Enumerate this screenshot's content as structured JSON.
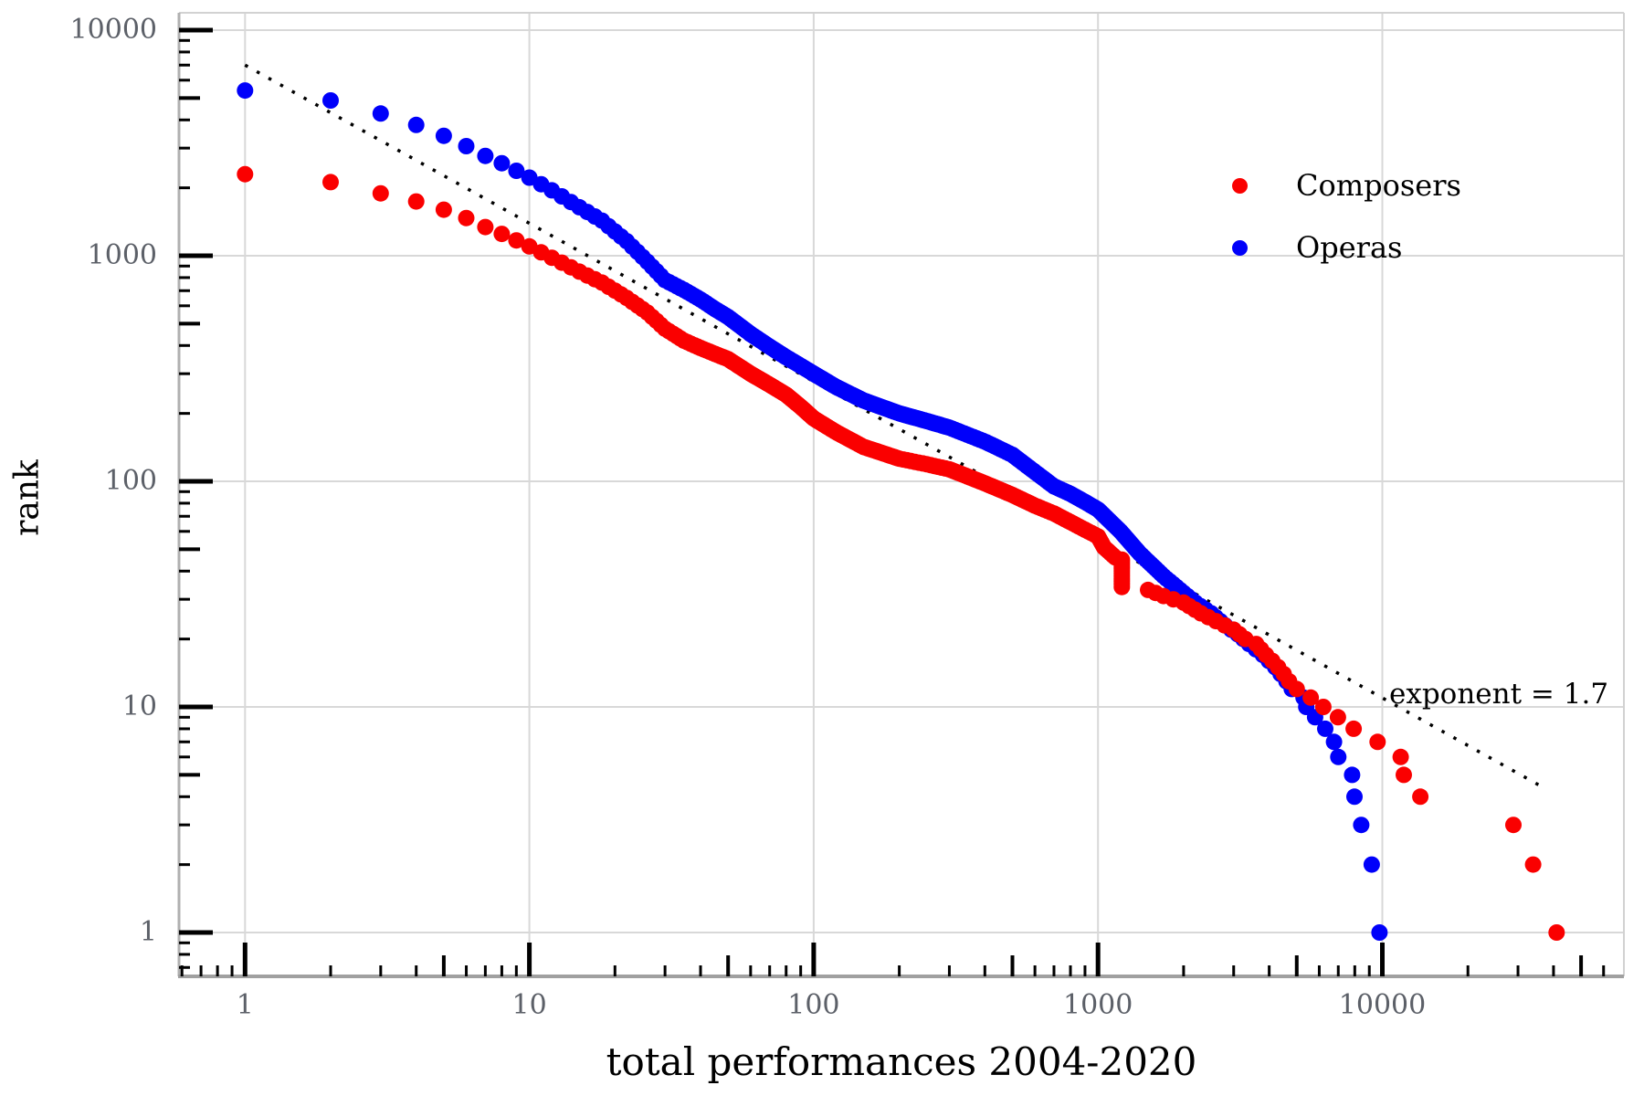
{
  "chart_data": {
    "type": "scatter",
    "title": "",
    "xlabel": "total performances 2004-2020",
    "ylabel": "rank",
    "x_scale": "log",
    "y_scale": "log",
    "xlim": [
      0.6,
      70000
    ],
    "ylim": [
      0.65,
      11900
    ],
    "x_ticks": [
      "1",
      "10",
      "100",
      "1000",
      "10000"
    ],
    "y_ticks": [
      "1",
      "10",
      "100",
      "1000",
      "10000"
    ],
    "grid": "major",
    "legend_position": "upper-right",
    "series": [
      {
        "name": "Composers",
        "color": "#fa0000",
        "points": [
          [
            1,
            2300
          ],
          [
            2,
            2120
          ],
          [
            3,
            1890
          ],
          [
            4,
            1740
          ],
          [
            5,
            1600
          ],
          [
            6,
            1470
          ],
          [
            7,
            1340
          ],
          [
            8,
            1250
          ],
          [
            9,
            1170
          ],
          [
            10,
            1100
          ],
          [
            12,
            980
          ],
          [
            15,
            850
          ],
          [
            18,
            760
          ],
          [
            22,
            650
          ],
          [
            26,
            560
          ],
          [
            30,
            475
          ],
          [
            35,
            420
          ],
          [
            40,
            390
          ],
          [
            45,
            367
          ],
          [
            50,
            348
          ],
          [
            60,
            300
          ],
          [
            70,
            268
          ],
          [
            80,
            242
          ],
          [
            90,
            214
          ],
          [
            100,
            190
          ],
          [
            120,
            165
          ],
          [
            150,
            142
          ],
          [
            200,
            126
          ],
          [
            250,
            119
          ],
          [
            300,
            113
          ],
          [
            400,
            98
          ],
          [
            500,
            87
          ],
          [
            600,
            78
          ],
          [
            700,
            72
          ],
          [
            800,
            66
          ],
          [
            900,
            61
          ],
          [
            1000,
            57
          ],
          [
            1050,
            51
          ],
          [
            1150,
            46
          ],
          [
            1213,
            45
          ],
          [
            1213,
            34
          ],
          [
            1500,
            33
          ],
          [
            1700,
            31
          ],
          [
            2000,
            29
          ],
          [
            2300,
            26
          ],
          [
            2600,
            24
          ],
          [
            3000,
            22
          ],
          [
            3300,
            20
          ],
          [
            3600,
            19
          ],
          [
            3900,
            17
          ],
          [
            4100,
            16
          ],
          [
            4300,
            15
          ],
          [
            4500,
            14
          ],
          [
            4700,
            13
          ],
          [
            5000,
            12
          ],
          [
            5600,
            11
          ],
          [
            6200,
            10
          ],
          [
            6980,
            9
          ],
          [
            7930,
            8
          ],
          [
            9620,
            7
          ],
          [
            11600,
            6
          ],
          [
            11900,
            5
          ],
          [
            13600,
            4
          ],
          [
            28900,
            3
          ],
          [
            33900,
            2
          ],
          [
            41000,
            1
          ]
        ]
      },
      {
        "name": "Operas",
        "color": "#0000fa",
        "points": [
          [
            1,
            5400
          ],
          [
            2,
            4880
          ],
          [
            3,
            4270
          ],
          [
            4,
            3800
          ],
          [
            5,
            3400
          ],
          [
            6,
            3060
          ],
          [
            7,
            2770
          ],
          [
            8,
            2570
          ],
          [
            9,
            2380
          ],
          [
            10,
            2220
          ],
          [
            12,
            1950
          ],
          [
            15,
            1640
          ],
          [
            18,
            1430
          ],
          [
            22,
            1160
          ],
          [
            26,
            940
          ],
          [
            30,
            780
          ],
          [
            35,
            705
          ],
          [
            40,
            640
          ],
          [
            45,
            580
          ],
          [
            50,
            535
          ],
          [
            60,
            450
          ],
          [
            70,
            395
          ],
          [
            80,
            355
          ],
          [
            90,
            325
          ],
          [
            100,
            300
          ],
          [
            120,
            262
          ],
          [
            150,
            228
          ],
          [
            200,
            200
          ],
          [
            250,
            185
          ],
          [
            300,
            173
          ],
          [
            400,
            150
          ],
          [
            500,
            131
          ],
          [
            600,
            110
          ],
          [
            700,
            95
          ],
          [
            800,
            88
          ],
          [
            900,
            81
          ],
          [
            1000,
            75
          ],
          [
            1200,
            60
          ],
          [
            1400,
            48
          ],
          [
            1700,
            38
          ],
          [
            2000,
            32
          ],
          [
            2200,
            29
          ],
          [
            2500,
            26
          ],
          [
            2800,
            23
          ],
          [
            3100,
            21
          ],
          [
            3400,
            19
          ],
          [
            3800,
            17
          ],
          [
            4200,
            15
          ],
          [
            4600,
            13
          ],
          [
            4800,
            12
          ],
          [
            5280,
            11
          ],
          [
            5400,
            10
          ],
          [
            5800,
            9
          ],
          [
            6300,
            8
          ],
          [
            6760,
            7
          ],
          [
            7000,
            6
          ],
          [
            7830,
            5
          ],
          [
            7980,
            4
          ],
          [
            8430,
            3
          ],
          [
            9180,
            2
          ],
          [
            9770,
            1
          ]
        ]
      }
    ],
    "trend_line": {
      "label": "exponent = 1.7",
      "style": "dotted",
      "color": "#000000",
      "points": [
        [
          1,
          7000
        ],
        [
          38000,
          4.3
        ]
      ]
    }
  },
  "legend": {
    "items": [
      {
        "label": "Composers",
        "swatch": "#fa0000"
      },
      {
        "label": "Operas",
        "swatch": "#0000fa"
      }
    ]
  },
  "style_colors": {
    "grid": "#d8d8d8",
    "spine_left": "#b0b0b0",
    "spine_bottom": "#a0a0a0",
    "spine_light": "#d2d2d2",
    "tick": "#000000",
    "tick_text": "#5c6068"
  }
}
